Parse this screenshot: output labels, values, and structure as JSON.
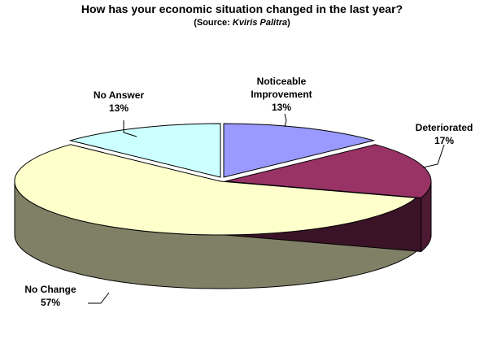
{
  "chart_data": {
    "type": "pie",
    "title": "How has your economic situation changed in the last year?",
    "subtitle": {
      "prefix": "(Source: ",
      "source": "Kviris Palitra",
      "suffix": ")"
    },
    "slices": [
      {
        "label_lines": [
          "Noticeable",
          "Improvement"
        ],
        "value": 13,
        "value_label": "13%",
        "color": "#9999ff"
      },
      {
        "label_lines": [
          "Deteriorated"
        ],
        "value": 17,
        "value_label": "17%",
        "color": "#993366"
      },
      {
        "label_lines": [
          "No Change"
        ],
        "value": 57,
        "value_label": "57%",
        "color": "#ffffcc"
      },
      {
        "label_lines": [
          "No Answer"
        ],
        "value": 13,
        "value_label": "13%",
        "color": "#ccffff"
      }
    ],
    "style": "3d-pie",
    "legend": "none",
    "start": "12 o'clock, clockwise"
  }
}
